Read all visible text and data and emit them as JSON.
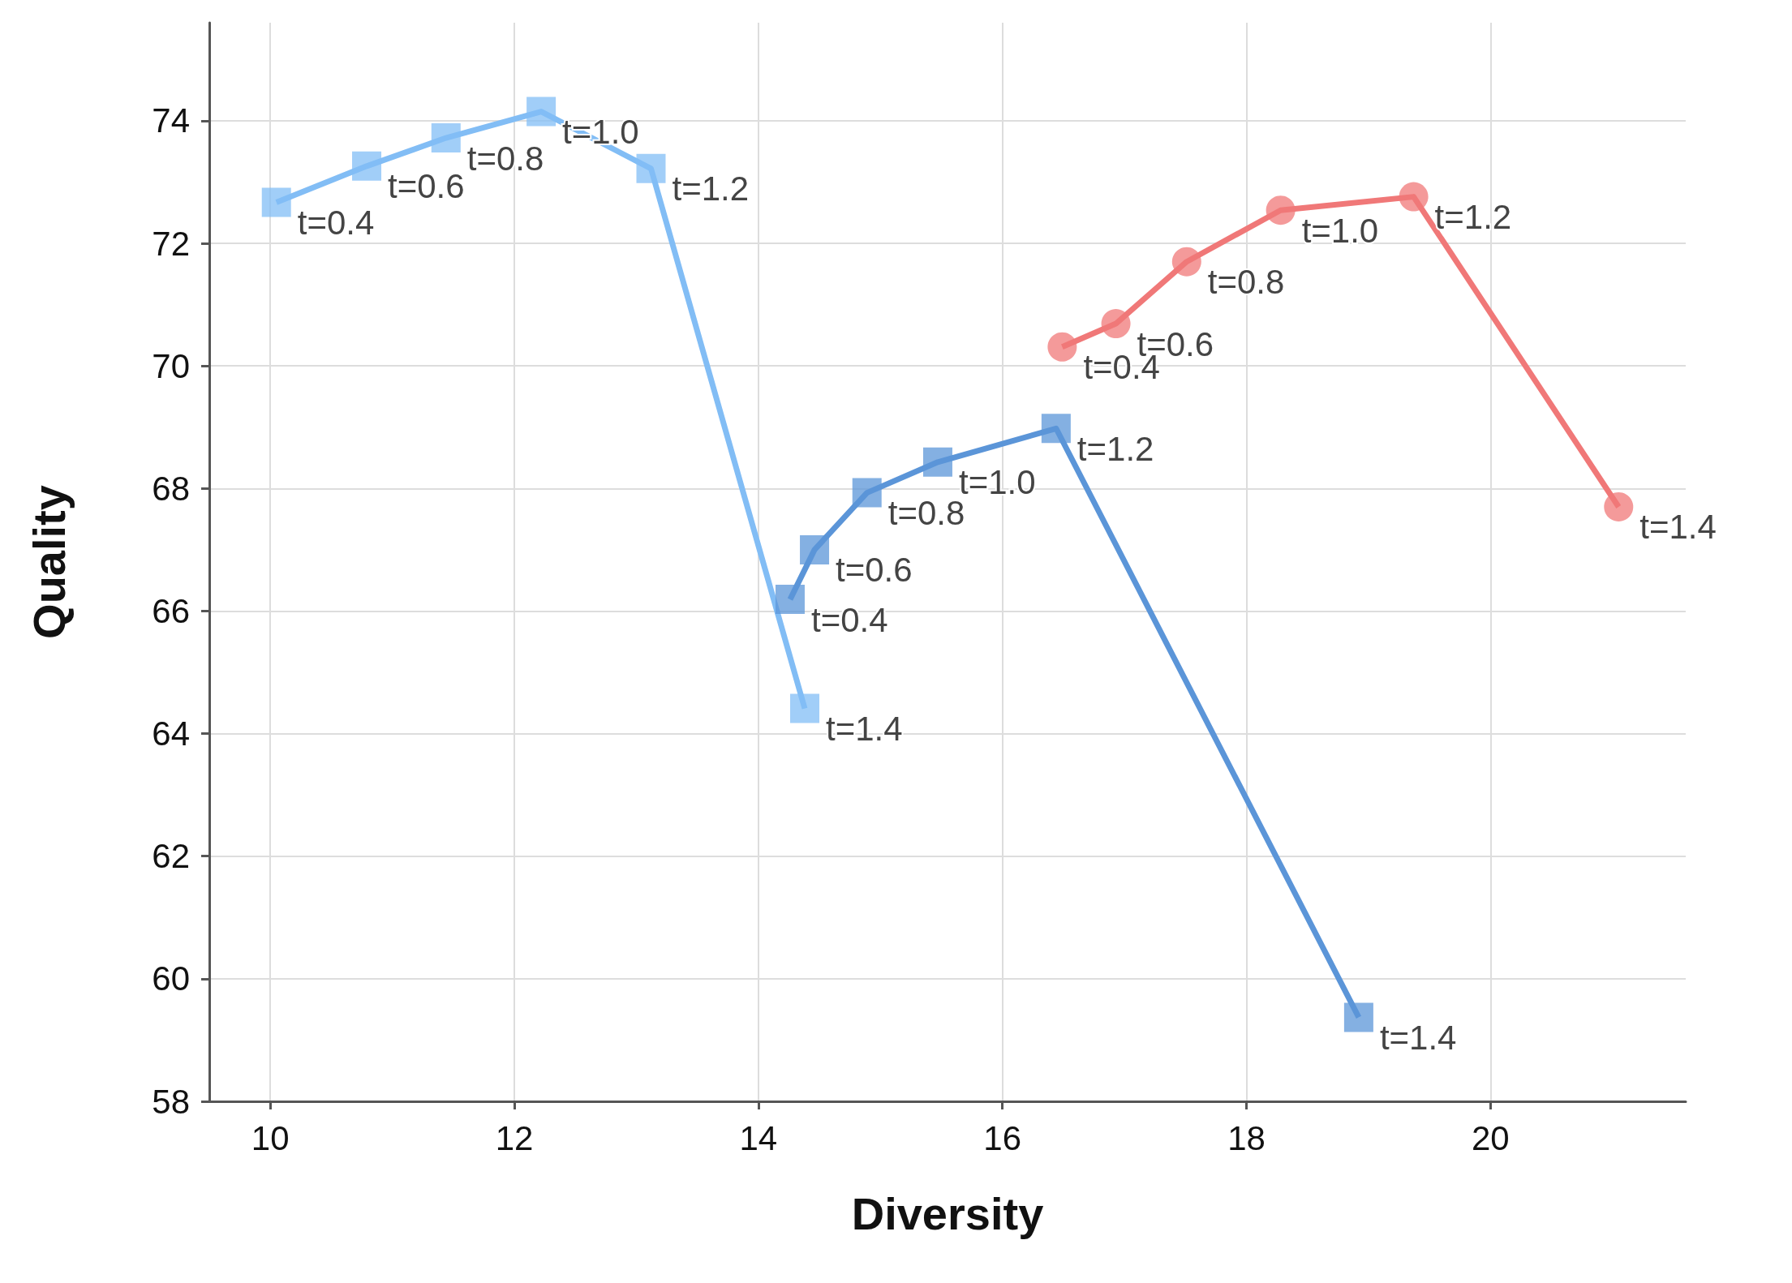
{
  "chart_data": {
    "type": "line",
    "xlabel": "Diversity",
    "ylabel": "Quality",
    "xlim": [
      9.5,
      21.6
    ],
    "xticks": [
      10,
      12,
      14,
      16,
      18,
      20
    ],
    "ylim": [
      58,
      75.6
    ],
    "yticks": [
      58,
      60,
      62,
      64,
      66,
      68,
      70,
      72,
      74
    ],
    "grid": true,
    "series": [
      {
        "color": "#82bdf5",
        "marker": "square",
        "x": [
          10.05,
          10.79,
          11.44,
          12.22,
          13.12,
          14.38
        ],
        "values": [
          72.67,
          73.26,
          73.72,
          74.15,
          73.22,
          64.41
        ]
      },
      {
        "color": "#5b95d8",
        "marker": "square",
        "x": [
          14.26,
          14.46,
          14.89,
          15.47,
          16.44,
          18.92
        ],
        "values": [
          66.19,
          67.0,
          67.93,
          68.43,
          68.98,
          59.37
        ]
      },
      {
        "color": "#f07878",
        "marker": "circle",
        "x": [
          16.49,
          16.93,
          17.51,
          18.28,
          19.37,
          21.05
        ],
        "values": [
          70.31,
          70.69,
          71.7,
          72.54,
          72.76,
          67.7
        ]
      }
    ],
    "annotations": [
      {
        "text": "t=0.4",
        "x": 10.05,
        "y": 72.67
      },
      {
        "text": "t=0.6",
        "x": 10.79,
        "y": 73.26
      },
      {
        "text": "t=0.8",
        "x": 11.44,
        "y": 73.72
      },
      {
        "text": "t=1.0",
        "x": 12.22,
        "y": 74.15
      },
      {
        "text": "t=1.2",
        "x": 13.12,
        "y": 73.22
      },
      {
        "text": "t=1.4",
        "x": 14.38,
        "y": 64.41
      },
      {
        "text": "t=0.4",
        "x": 14.26,
        "y": 66.19
      },
      {
        "text": "t=0.6",
        "x": 14.46,
        "y": 67.0
      },
      {
        "text": "t=0.8",
        "x": 14.89,
        "y": 67.93
      },
      {
        "text": "t=1.0",
        "x": 15.47,
        "y": 68.43
      },
      {
        "text": "t=1.2",
        "x": 16.44,
        "y": 68.98
      },
      {
        "text": "t=1.4",
        "x": 18.92,
        "y": 59.37
      },
      {
        "text": "t=0.4",
        "x": 16.49,
        "y": 70.31
      },
      {
        "text": "t=0.6",
        "x": 16.93,
        "y": 70.69
      },
      {
        "text": "t=0.8",
        "x": 17.51,
        "y": 71.7
      },
      {
        "text": "t=1.0",
        "x": 18.28,
        "y": 72.54
      },
      {
        "text": "t=1.2",
        "x": 19.37,
        "y": 72.76
      },
      {
        "text": "t=1.4",
        "x": 21.05,
        "y": 67.7
      }
    ]
  }
}
